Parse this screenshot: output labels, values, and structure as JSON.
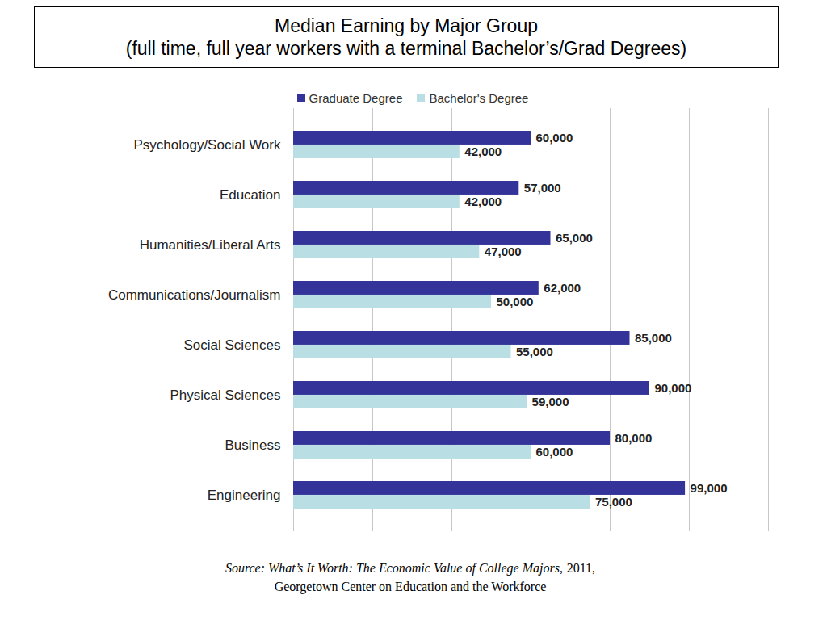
{
  "chart_data": {
    "type": "bar",
    "title": "Median Earning by Major Group",
    "subtitle": "(full time, full year workers with a terminal Bachelor’s/Grad Degrees)",
    "orientation": "horizontal",
    "categories": [
      "Psychology/Social Work",
      "Education",
      "Humanities/Liberal Arts",
      "Communications/Journalism",
      "Social Sciences",
      "Physical Sciences",
      "Business",
      "Engineering"
    ],
    "series": [
      {
        "name": "Graduate Degree",
        "color": "#333399",
        "values": [
          60000,
          57000,
          65000,
          62000,
          85000,
          90000,
          80000,
          99000
        ],
        "value_labels": [
          "60,000",
          "57,000",
          "65,000",
          "62,000",
          "85,000",
          "90,000",
          "80,000",
          "99,000"
        ]
      },
      {
        "name": "Bachelor's Degree",
        "color": "#b9dfe4",
        "values": [
          42000,
          42000,
          47000,
          50000,
          55000,
          59000,
          60000,
          75000
        ],
        "value_labels": [
          "42,000",
          "42,000",
          "47,000",
          "50,000",
          "55,000",
          "59,000",
          "60,000",
          "75,000"
        ]
      }
    ],
    "xlim": [
      0,
      120000
    ],
    "xticks": [
      0,
      20000,
      40000,
      60000,
      80000,
      100000,
      120000
    ],
    "grid": true,
    "legend": "top",
    "data_labels": true,
    "tick_labels": "y",
    "annotations": [
      "Source: What’s It Worth: The Economic Value of College Majors,",
      "2011,",
      "Georgetown Center on Education and the Workforce"
    ]
  }
}
